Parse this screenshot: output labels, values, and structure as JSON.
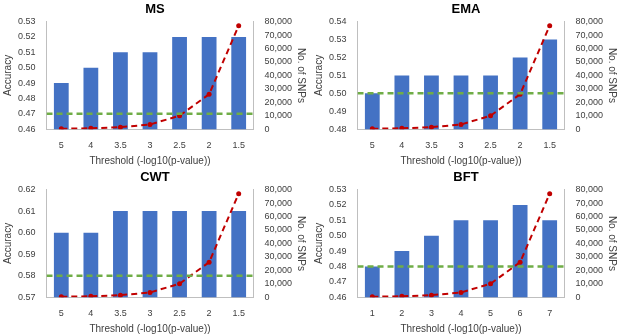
{
  "chart_data": [
    {
      "type": "bar",
      "title": "MS",
      "x_label": "Threshold (-log10(p-value))",
      "y_label": "Accuracy",
      "y2_label": "No. of SNPs",
      "grid": false,
      "categories": [
        "5",
        "4",
        "3.5",
        "3",
        "2.5",
        "2",
        "1.5"
      ],
      "series": [
        {
          "type": "bar",
          "color": "#4472c4",
          "values": [
            0.49,
            0.5,
            0.51,
            0.51,
            0.52,
            0.52,
            0.52
          ]
        },
        {
          "type": "line",
          "axis": "y2",
          "color": "#c00000",
          "line_style": "dashed",
          "marker": "circle",
          "values": [
            300,
            700,
            1500,
            3500,
            10000,
            26000,
            77000
          ]
        }
      ],
      "reference_line": {
        "value": 0.47,
        "color": "#70ad47",
        "line_style": "dashed"
      },
      "ylim": [
        0.46,
        0.53
      ],
      "yticks": [
        0.46,
        0.47,
        0.48,
        0.49,
        {
          "value": 0.5,
          "label": "0.50"
        },
        0.51,
        0.52,
        0.53
      ],
      "y2lim": [
        0,
        80000
      ],
      "y2ticks": [
        0,
        {
          "value": 10000,
          "label": "10,000"
        },
        {
          "value": 20000,
          "label": "20,000"
        },
        {
          "value": 30000,
          "label": "30,000"
        },
        {
          "value": 40000,
          "label": "40,000"
        },
        {
          "value": 50000,
          "label": "50,000"
        },
        {
          "value": 60000,
          "label": "60,000"
        },
        {
          "value": 70000,
          "label": "70,000"
        },
        {
          "value": 80000,
          "label": "80,000"
        }
      ]
    },
    {
      "type": "bar",
      "title": "EMA",
      "x_label": "Threshold (-log10(p-value))",
      "y_label": "Accuracy",
      "y2_label": "No. of SNPs",
      "grid": false,
      "categories": [
        "5",
        "4",
        "3.5",
        "3",
        "2.5",
        "2",
        "1.5"
      ],
      "series": [
        {
          "type": "bar",
          "color": "#4472c4",
          "values": [
            0.5,
            0.51,
            0.51,
            0.51,
            0.51,
            0.52,
            0.53
          ]
        },
        {
          "type": "line",
          "axis": "y2",
          "color": "#c00000",
          "line_style": "dashed",
          "marker": "circle",
          "values": [
            300,
            700,
            1500,
            3500,
            10000,
            26000,
            77000
          ]
        }
      ],
      "reference_line": {
        "value": 0.5,
        "color": "#70ad47",
        "line_style": "dashed"
      },
      "ylim": [
        0.48,
        0.54
      ],
      "yticks": [
        0.48,
        0.49,
        {
          "value": 0.5,
          "label": "0.50"
        },
        0.51,
        0.52,
        0.53,
        0.54
      ],
      "y2lim": [
        0,
        80000
      ],
      "y2ticks": [
        0,
        {
          "value": 10000,
          "label": "10,000"
        },
        {
          "value": 20000,
          "label": "20,000"
        },
        {
          "value": 30000,
          "label": "30,000"
        },
        {
          "value": 40000,
          "label": "40,000"
        },
        {
          "value": 50000,
          "label": "50,000"
        },
        {
          "value": 60000,
          "label": "60,000"
        },
        {
          "value": 70000,
          "label": "70,000"
        },
        {
          "value": 80000,
          "label": "80,000"
        }
      ]
    },
    {
      "type": "bar",
      "title": "CWT",
      "x_label": "Threshold (-log10(p-value))",
      "y_label": "Accuracy",
      "y2_label": "No. of SNPs",
      "grid": false,
      "categories": [
        "5",
        "4",
        "3.5",
        "3",
        "2.5",
        "2",
        "1.5"
      ],
      "series": [
        {
          "type": "bar",
          "color": "#4472c4",
          "values": [
            0.6,
            0.6,
            0.61,
            0.61,
            0.61,
            0.61,
            0.61
          ]
        },
        {
          "type": "line",
          "axis": "y2",
          "color": "#c00000",
          "line_style": "dashed",
          "marker": "circle",
          "values": [
            300,
            700,
            1500,
            3500,
            10000,
            26000,
            77000
          ]
        }
      ],
      "reference_line": {
        "value": 0.58,
        "color": "#70ad47",
        "line_style": "dashed"
      },
      "ylim": [
        0.57,
        0.62
      ],
      "yticks": [
        0.57,
        0.58,
        0.59,
        {
          "value": 0.6,
          "label": "0.60"
        },
        0.61,
        0.62
      ],
      "y2lim": [
        0,
        80000
      ],
      "y2ticks": [
        0,
        {
          "value": 10000,
          "label": "10,000"
        },
        {
          "value": 20000,
          "label": "20,000"
        },
        {
          "value": 30000,
          "label": "30,000"
        },
        {
          "value": 40000,
          "label": "40,000"
        },
        {
          "value": 50000,
          "label": "50,000"
        },
        {
          "value": 60000,
          "label": "60,000"
        },
        {
          "value": 70000,
          "label": "70,000"
        },
        {
          "value": 80000,
          "label": "80,000"
        }
      ]
    },
    {
      "type": "bar",
      "title": "BFT",
      "x_label": "Threshold (-log10(p-value))",
      "y_label": "Accuracy",
      "y2_label": "No. of SNPs",
      "grid": false,
      "categories": [
        "1",
        "2",
        "3",
        "4",
        "5",
        "6",
        "7"
      ],
      "series": [
        {
          "type": "bar",
          "color": "#4472c4",
          "values": [
            0.48,
            0.49,
            0.5,
            0.51,
            0.51,
            0.52,
            0.51
          ]
        },
        {
          "type": "line",
          "axis": "y2",
          "color": "#c00000",
          "line_style": "dashed",
          "marker": "circle",
          "values": [
            300,
            700,
            1500,
            3500,
            10000,
            26000,
            77000
          ]
        }
      ],
      "reference_line": {
        "value": 0.48,
        "color": "#70ad47",
        "line_style": "dashed"
      },
      "ylim": [
        0.46,
        0.53
      ],
      "yticks": [
        0.46,
        0.47,
        0.48,
        0.49,
        {
          "value": 0.5,
          "label": "0.50"
        },
        0.51,
        0.52,
        0.53
      ],
      "y2lim": [
        0,
        80000
      ],
      "y2ticks": [
        0,
        {
          "value": 10000,
          "label": "10,000"
        },
        {
          "value": 20000,
          "label": "20,000"
        },
        {
          "value": 30000,
          "label": "30,000"
        },
        {
          "value": 40000,
          "label": "40,000"
        },
        {
          "value": 50000,
          "label": "50,000"
        },
        {
          "value": 60000,
          "label": "60,000"
        },
        {
          "value": 70000,
          "label": "70,000"
        },
        {
          "value": 80000,
          "label": "80,000"
        }
      ]
    }
  ]
}
